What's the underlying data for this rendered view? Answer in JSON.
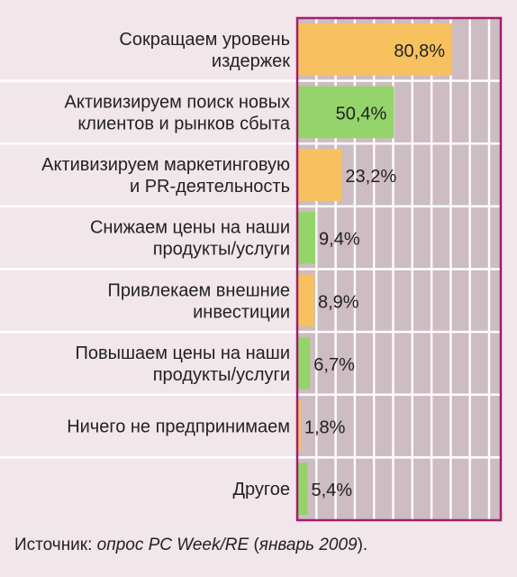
{
  "chart_data": {
    "type": "bar",
    "orientation": "horizontal",
    "categories": [
      [
        "Сокращаем уровень",
        "издержек"
      ],
      [
        "Активизируем поиск новых",
        "клиентов и рынков сбыта"
      ],
      [
        "Активизируем маркетинговую",
        "и PR-деятельность"
      ],
      [
        "Снижаем цены на наши",
        "продукты/услуги"
      ],
      [
        "Привлекаем внешние",
        "инвестиции"
      ],
      [
        "Повышаем цены на наши",
        "продукты/услуги"
      ],
      [
        "Ничего не предпринимаем"
      ],
      [
        "Другое"
      ]
    ],
    "values": [
      80.8,
      50.4,
      23.2,
      9.4,
      8.9,
      6.7,
      1.8,
      5.4
    ],
    "value_labels": [
      "80,8%",
      "50,4%",
      "23,2%",
      "9,4%",
      "8,9%",
      "6,7%",
      "1,8%",
      "5,4%"
    ],
    "bar_colors": [
      "#f7c15f",
      "#94d46a",
      "#f7c15f",
      "#94d46a",
      "#f7c15f",
      "#94d46a",
      "#f7c15f",
      "#94d46a"
    ],
    "xlim": [
      0,
      100
    ],
    "grid": true,
    "colors": {
      "background": "#f1e6ea",
      "plot_background": "#cdbcc1",
      "frame": "#a31d6e",
      "grid": "#ffffff",
      "row_separator": "#ffffff",
      "text": "#222222"
    }
  },
  "footer": {
    "source_prefix": "Источник: ",
    "source_italic": "опрос PC Week/RE",
    "source_middle": " (",
    "source_italic2": "январь 2009",
    "source_suffix": ")."
  }
}
